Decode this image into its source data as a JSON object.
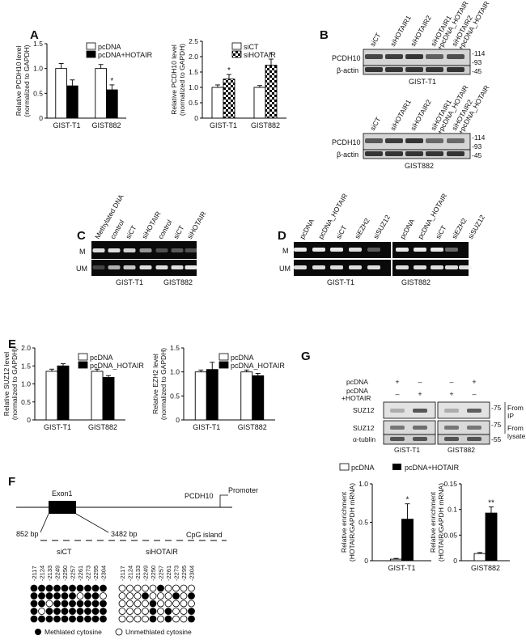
{
  "panels": {
    "A": "A",
    "B": "B",
    "C": "C",
    "D": "D",
    "E": "E",
    "F": "F",
    "G": "G"
  },
  "chart_data": [
    {
      "id": "A1",
      "type": "bar",
      "ylabel": [
        "Relative PCDH10 level",
        "(normalized to GAPDH)"
      ],
      "categories": [
        "GIST-T1",
        "GIST882"
      ],
      "ylim": [
        0,
        1.5
      ],
      "yticks": [
        "0",
        "0.5",
        "1.0",
        "1.5"
      ],
      "series": [
        {
          "name": "pcDNA",
          "fill": "#ffffff",
          "values": [
            1.0,
            1.0
          ],
          "err": [
            0.1,
            0.08
          ]
        },
        {
          "name": "pcDNA+HOTAIR",
          "fill": "#000000",
          "values": [
            0.65,
            0.57
          ],
          "err": [
            0.12,
            0.1
          ]
        }
      ],
      "marks": [
        "",
        "*"
      ]
    },
    {
      "id": "A2",
      "type": "bar",
      "ylabel": [
        "Relative PCDH10 level",
        "(normalized to GAPDH)"
      ],
      "categories": [
        "GIST-T1",
        "GIST882"
      ],
      "ylim": [
        0,
        2.5
      ],
      "yticks": [
        "0",
        "0.5",
        "1.0",
        "1.5",
        "2.0",
        "2.5"
      ],
      "series": [
        {
          "name": "siCT",
          "fill": "#ffffff",
          "values": [
            1.0,
            1.0
          ],
          "err": [
            0.08,
            0.06
          ]
        },
        {
          "name": "siHOTAIR",
          "fill": "checker",
          "values": [
            1.27,
            1.72
          ],
          "err": [
            0.15,
            0.2
          ]
        }
      ],
      "marks": [
        "*",
        "*"
      ]
    },
    {
      "id": "E1",
      "type": "bar",
      "ylabel": [
        "Relative SUZ12 level",
        "(normalized to GAPDH)"
      ],
      "categories": [
        "GIST-T1",
        "GIST882"
      ],
      "ylim": [
        0,
        2.0
      ],
      "yticks": [
        "0",
        "0.5",
        "1.0",
        "1.5",
        "2.0"
      ],
      "series": [
        {
          "name": "pcDNA",
          "fill": "#ffffff",
          "values": [
            1.35,
            1.35
          ],
          "err": [
            0.06,
            0.06
          ]
        },
        {
          "name": "pcDNA_HOTAIR",
          "fill": "#000000",
          "values": [
            1.5,
            1.18
          ],
          "err": [
            0.06,
            0.05
          ]
        }
      ],
      "marks": [
        "",
        ""
      ]
    },
    {
      "id": "E2",
      "type": "bar",
      "ylabel": [
        "Relative EZH2 level",
        "(normalized to GAPDH)"
      ],
      "categories": [
        "GIST-T1",
        "GIST882"
      ],
      "ylim": [
        0,
        1.5
      ],
      "yticks": [
        "0",
        "0.5",
        "1.0",
        "1.5"
      ],
      "series": [
        {
          "name": "pcDNA",
          "fill": "#ffffff",
          "values": [
            1.0,
            1.0
          ],
          "err": [
            0.04,
            0.04
          ]
        },
        {
          "name": "pcDNA_HOTAIR",
          "fill": "#000000",
          "values": [
            1.05,
            0.92
          ],
          "err": [
            0.15,
            0.05
          ]
        }
      ],
      "marks": [
        "",
        ""
      ]
    },
    {
      "id": "G1",
      "type": "bar",
      "ylabel": [
        "Relative enrichment",
        "(HOTAIR/GAPDH mRNA)"
      ],
      "categories": [
        "GIST-T1"
      ],
      "ylim": [
        0,
        1.0
      ],
      "yticks": [
        "0",
        "0.5",
        "1.0"
      ],
      "series": [
        {
          "name": "pcDNA",
          "fill": "#ffffff",
          "values": [
            0.02
          ],
          "err": [
            0.01
          ]
        },
        {
          "name": "pcDNA+HOTAIR",
          "fill": "#000000",
          "values": [
            0.54
          ],
          "err": [
            0.2
          ]
        }
      ],
      "marks": [
        "*"
      ]
    },
    {
      "id": "G2",
      "type": "bar",
      "ylabel": [
        "Relative enrichment",
        "(HOTAIR/GAPDH mRNA)"
      ],
      "categories": [
        "GIST882"
      ],
      "ylim": [
        0,
        0.15
      ],
      "yticks": [
        "0",
        "0.05",
        "0.1",
        "0.15"
      ],
      "series": [
        {
          "name": "pcDNA",
          "fill": "#ffffff",
          "values": [
            0.014
          ],
          "err": [
            0.002
          ]
        },
        {
          "name": "pcDNA+HOTAIR",
          "fill": "#000000",
          "values": [
            0.093
          ],
          "err": [
            0.012
          ]
        }
      ],
      "marks": [
        "**"
      ]
    }
  ],
  "legendG": {
    "a": "pcDNA",
    "b": "pcDNA+HOTAIR"
  },
  "B": {
    "lanes": [
      "siCT",
      "siHOTAIR1",
      "siHOTAIR2",
      "siHOTAIR1\n+pcDNA_HOTAIR",
      "siHOTAIR2\n+pcDNA_HOTAIR"
    ],
    "rows": [
      "PCDH10",
      "β-actin"
    ],
    "markers": [
      "-114",
      "-93",
      "-45"
    ],
    "cell1": "GIST-T1",
    "cell2": "GIST882"
  },
  "C": {
    "lanes": [
      "Methylated DNA",
      "control",
      "siCT",
      "siHOTAIR",
      "control",
      "siCT",
      "siHOTAIR"
    ],
    "rows": [
      "M",
      "UM"
    ],
    "cells": [
      "GIST-T1",
      "GIST882"
    ]
  },
  "D": {
    "lanes1": [
      "pcDNA",
      "pcDNA_HOTAIR",
      "siCT",
      "siEZH2",
      "siSUZ12"
    ],
    "lanes2": [
      "pcDNA",
      "pcDNA_HOTAIR",
      "siCT",
      "siEZH2",
      "siSUZ12"
    ],
    "rows": [
      "M",
      "UM"
    ],
    "cells": [
      "GIST-T1",
      "GIST882"
    ]
  },
  "G": {
    "rows": [
      "pcDNA",
      "pcDNA\n+HOTAIR"
    ],
    "signs1": [
      "+",
      "–",
      "–",
      "+"
    ],
    "signs2": [
      "+",
      "–",
      "–",
      "+"
    ],
    "blots": [
      "SUZ12",
      "SUZ12",
      "α-tublin"
    ],
    "markers": [
      "-75",
      "-75",
      "-55"
    ],
    "from": [
      "From\nIP",
      "From\nlysate"
    ],
    "cells": [
      "GIST-T1",
      "GIST882"
    ]
  },
  "F": {
    "exon": "Exon1",
    "gene": "PCDH10",
    "promoter": "Promoter",
    "bp1": "852 bp",
    "bp2": "3482 bp",
    "cpg": "CpG island",
    "groups": [
      "siCT",
      "siHOTAIR"
    ],
    "positions": [
      "-2117",
      "-2124",
      "-2133",
      "-2249",
      "-2250",
      "-2257",
      "-2261",
      "-2273",
      "-2295",
      "-2304"
    ],
    "siCT": [
      [
        1,
        1,
        1,
        1,
        1,
        1,
        1,
        1,
        1,
        1
      ],
      [
        1,
        1,
        1,
        1,
        1,
        1,
        0,
        1,
        1,
        0
      ],
      [
        1,
        1,
        0,
        1,
        1,
        1,
        1,
        1,
        1,
        1
      ],
      [
        1,
        0,
        1,
        1,
        1,
        1,
        1,
        1,
        1,
        1
      ],
      [
        1,
        1,
        1,
        1,
        1,
        1,
        1,
        1,
        1,
        1
      ]
    ],
    "siHOTAIR": [
      [
        0,
        0,
        0,
        0,
        0,
        1,
        0,
        0,
        0,
        0
      ],
      [
        0,
        0,
        0,
        1,
        0,
        0,
        0,
        1,
        0,
        1
      ],
      [
        0,
        0,
        0,
        0,
        1,
        0,
        0,
        0,
        0,
        0
      ],
      [
        0,
        0,
        0,
        0,
        1,
        0,
        1,
        0,
        0,
        1
      ],
      [
        0,
        0,
        0,
        0,
        1,
        0,
        1,
        0,
        0,
        1
      ]
    ],
    "legend": {
      "meth": "Methlated cytosine",
      "unmeth": "Unmethlated cytosine"
    }
  }
}
